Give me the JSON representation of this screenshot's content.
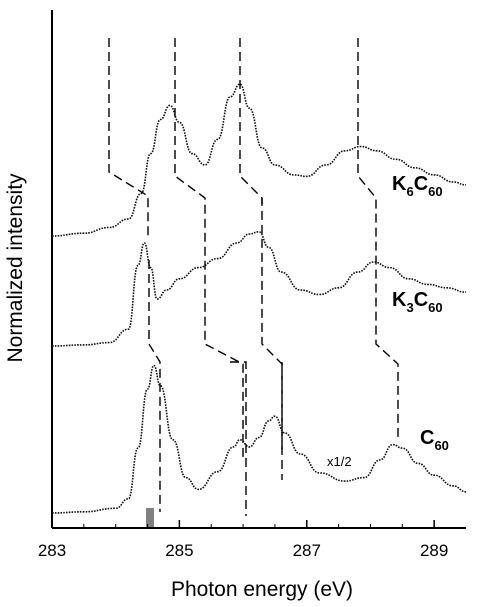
{
  "chart_data": {
    "type": "line",
    "xlabel": "Photon energy (eV)",
    "ylabel": "Normalized intensity",
    "xlim": [
      283,
      289.5
    ],
    "x_ticks": [
      "283",
      "285",
      "287",
      "289"
    ],
    "x_tick_values": [
      283,
      285,
      287,
      289
    ],
    "series": [
      {
        "name": "K6C60",
        "label_main": "K",
        "label_sub1": "6",
        "label_mid": "C",
        "label_sub2": "60",
        "style": "solid",
        "offset": 2.0,
        "x": [
          283.0,
          283.5,
          283.9,
          284.2,
          284.4,
          284.55,
          284.7,
          284.85,
          285.0,
          285.2,
          285.4,
          285.6,
          285.8,
          285.95,
          286.1,
          286.3,
          286.5,
          286.8,
          287.0,
          287.3,
          287.6,
          287.85,
          288.1,
          288.4,
          288.7,
          289.0,
          289.3,
          289.5
        ],
        "y": [
          0.0,
          0.02,
          0.06,
          0.12,
          0.3,
          0.58,
          0.82,
          0.92,
          0.8,
          0.58,
          0.5,
          0.68,
          0.98,
          1.07,
          0.9,
          0.62,
          0.5,
          0.43,
          0.42,
          0.5,
          0.6,
          0.63,
          0.6,
          0.54,
          0.48,
          0.43,
          0.38,
          0.36
        ]
      },
      {
        "name": "K3C60",
        "label_main": "K",
        "label_sub1": "3",
        "label_mid": "C",
        "label_sub2": "60",
        "style": "solid",
        "offset": 1.0,
        "x": [
          283.0,
          283.5,
          283.9,
          284.2,
          284.35,
          284.45,
          284.55,
          284.65,
          284.8,
          285.0,
          285.3,
          285.6,
          285.9,
          286.1,
          286.25,
          286.4,
          286.6,
          286.9,
          287.2,
          287.5,
          287.8,
          288.05,
          288.3,
          288.6,
          288.9,
          289.2,
          289.5
        ],
        "y": [
          0.0,
          0.01,
          0.03,
          0.15,
          0.72,
          0.92,
          0.7,
          0.42,
          0.5,
          0.6,
          0.7,
          0.78,
          0.92,
          1.0,
          1.02,
          0.88,
          0.66,
          0.5,
          0.46,
          0.52,
          0.66,
          0.75,
          0.7,
          0.6,
          0.55,
          0.52,
          0.48
        ]
      },
      {
        "name": "C60",
        "label_main": "C",
        "label_sub1": "60",
        "label_mid": "",
        "label_sub2": "",
        "style": "solid",
        "offset": 0.0,
        "x": [
          283.0,
          283.5,
          284.0,
          284.2,
          284.35,
          284.5,
          284.6,
          284.7,
          284.9,
          285.1,
          285.3,
          285.6,
          285.85,
          285.95,
          286.1,
          286.25,
          286.4,
          286.5,
          286.65,
          286.9,
          287.2,
          287.6,
          287.9,
          288.15,
          288.35,
          288.5,
          288.75,
          289.0,
          289.3,
          289.5
        ],
        "y": [
          0.0,
          0.01,
          0.04,
          0.12,
          0.55,
          1.05,
          1.25,
          1.08,
          0.62,
          0.3,
          0.2,
          0.35,
          0.56,
          0.62,
          0.56,
          0.64,
          0.78,
          0.82,
          0.68,
          0.5,
          0.34,
          0.27,
          0.3,
          0.45,
          0.58,
          0.55,
          0.42,
          0.32,
          0.23,
          0.18
        ]
      }
    ],
    "annotation": "x1/2"
  }
}
